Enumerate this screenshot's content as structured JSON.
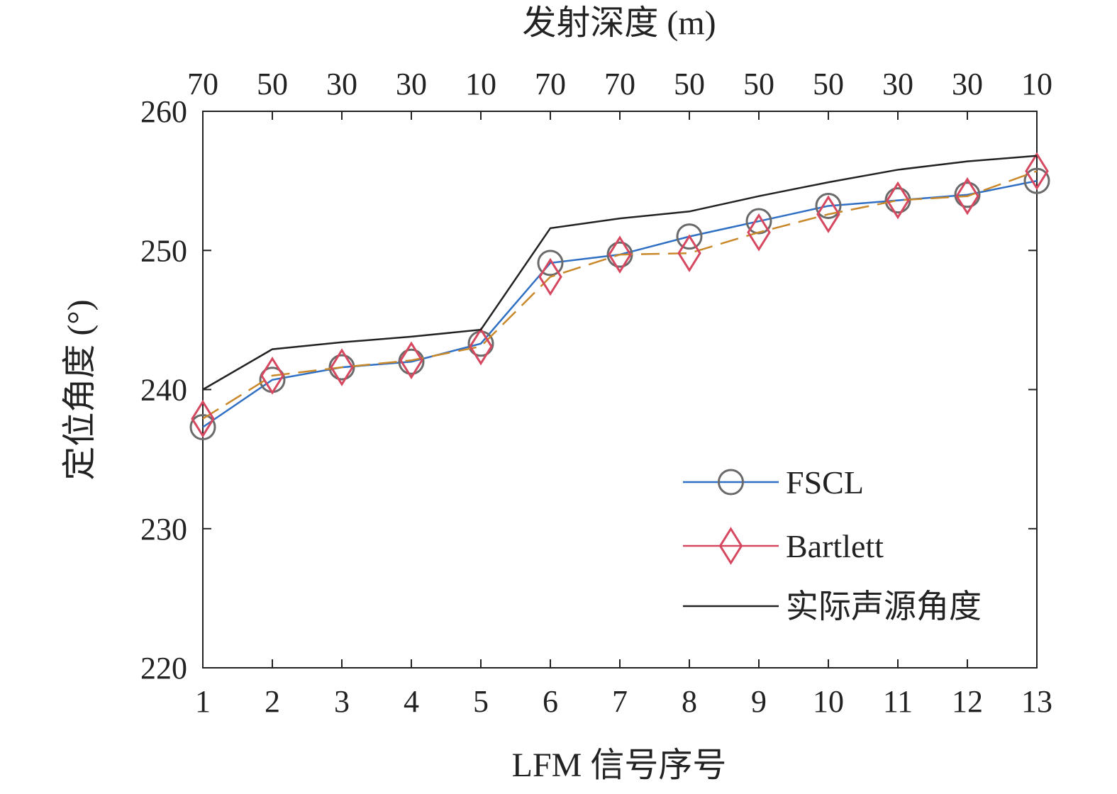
{
  "chart_data": {
    "type": "line",
    "xlabel": "LFM 信号序号",
    "ylabel": "定位角度 (°)",
    "top_xlabel": "发射深度 (m)",
    "x": [
      1,
      2,
      3,
      4,
      5,
      6,
      7,
      8,
      9,
      10,
      11,
      12,
      13
    ],
    "x_tick_labels": [
      "1",
      "2",
      "3",
      "4",
      "5",
      "6",
      "7",
      "8",
      "9",
      "10",
      "11",
      "12",
      "13"
    ],
    "top_tick_labels": [
      "70",
      "50",
      "30",
      "30",
      "10",
      "70",
      "70",
      "50",
      "50",
      "50",
      "30",
      "30",
      "10"
    ],
    "y_ticks": [
      220,
      230,
      240,
      250,
      260
    ],
    "y_tick_labels": [
      "220",
      "230",
      "240",
      "250",
      "260"
    ],
    "xlim": [
      1,
      13
    ],
    "ylim": [
      220,
      260
    ],
    "grid": false,
    "legend_position": "bottom-right",
    "series": [
      {
        "name": "FSCL",
        "marker": "circle",
        "line_color": "#2f6fc4",
        "marker_color": "#6a6a6a",
        "values": [
          237.3,
          240.7,
          241.6,
          242.0,
          243.3,
          249.1,
          249.7,
          251.0,
          252.1,
          253.2,
          253.6,
          254.0,
          255.0
        ]
      },
      {
        "name": "Bartlett",
        "marker": "diamond",
        "line_color": "#d6485f",
        "marker_color": "#d6485f",
        "values": [
          237.9,
          241.0,
          241.6,
          242.1,
          243.1,
          248.1,
          249.7,
          249.8,
          251.3,
          252.6,
          253.6,
          253.9,
          255.7
        ]
      },
      {
        "name": "实际声源角度",
        "marker": "none",
        "line_color": "#222222",
        "values": [
          240.0,
          242.9,
          243.4,
          243.8,
          244.3,
          251.6,
          252.3,
          252.8,
          253.9,
          254.9,
          255.8,
          256.4,
          256.8
        ]
      }
    ]
  }
}
